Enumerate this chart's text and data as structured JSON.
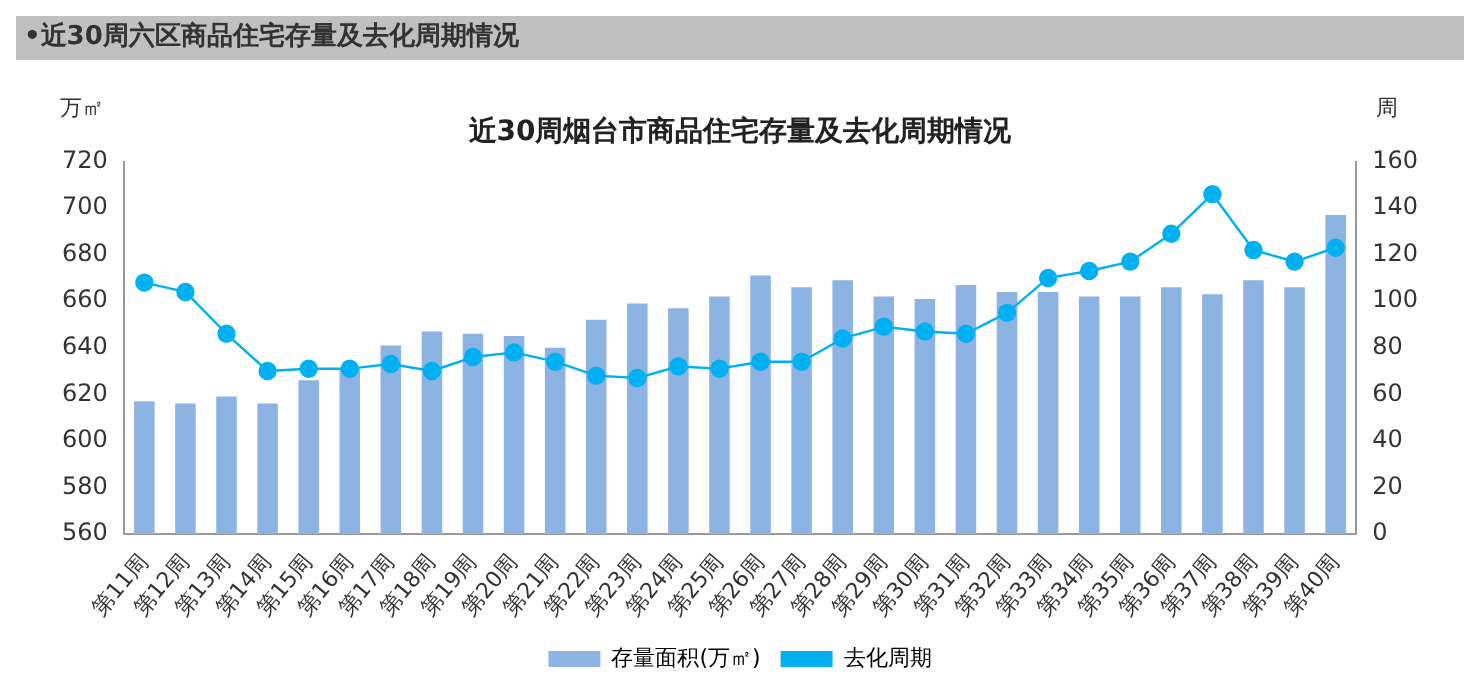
{
  "chart_data": {
    "type": "bar",
    "title": "近30周烟台市商品住宅存量及去化周期情况",
    "annotations": [
      "•近30周六区商品住宅存量及去化周期情况"
    ],
    "ylabel": "万㎡",
    "y2label": "周",
    "categories": [
      "第11周",
      "第12周",
      "第13周",
      "第14周",
      "第15周",
      "第16周",
      "第17周",
      "第18周",
      "第19周",
      "第20周",
      "第21周",
      "第22周",
      "第23周",
      "第24周",
      "第25周",
      "第26周",
      "第27周",
      "第28周",
      "第29周",
      "第30周",
      "第31周",
      "第32周",
      "第33周",
      "第34周",
      "第35周",
      "第36周",
      "第37周",
      "第38周",
      "第39周",
      "第40周"
    ],
    "series": [
      {
        "name": "存量面积(万㎡)",
        "color": "#8db3e2",
        "values": [
          617,
          616,
          619,
          616,
          626,
          631,
          641,
          647,
          646,
          645,
          640,
          652,
          659,
          657,
          662,
          671,
          666,
          669,
          662,
          661,
          667,
          664,
          664,
          662,
          662,
          666,
          663,
          669,
          666,
          697
        ]
      },
      {
        "name": "去化周期",
        "type": "line",
        "axis": "y2",
        "color": "#00b0f0",
        "marker": "circle",
        "values": [
          108,
          104,
          86,
          70,
          71,
          71,
          73,
          70,
          76,
          78,
          74,
          68,
          67,
          72,
          71,
          74,
          74,
          84,
          89,
          87,
          86,
          95,
          110,
          113,
          117,
          129,
          146,
          122,
          117,
          123
        ]
      }
    ],
    "ylim": [
      560,
      720
    ],
    "yticks": [
      560,
      580,
      600,
      620,
      640,
      660,
      680,
      700,
      720
    ],
    "y2lim": [
      0,
      160
    ],
    "y2ticks": [
      0,
      20,
      40,
      60,
      80,
      100,
      120,
      140,
      160
    ],
    "grid": false,
    "legend": "bottom"
  }
}
